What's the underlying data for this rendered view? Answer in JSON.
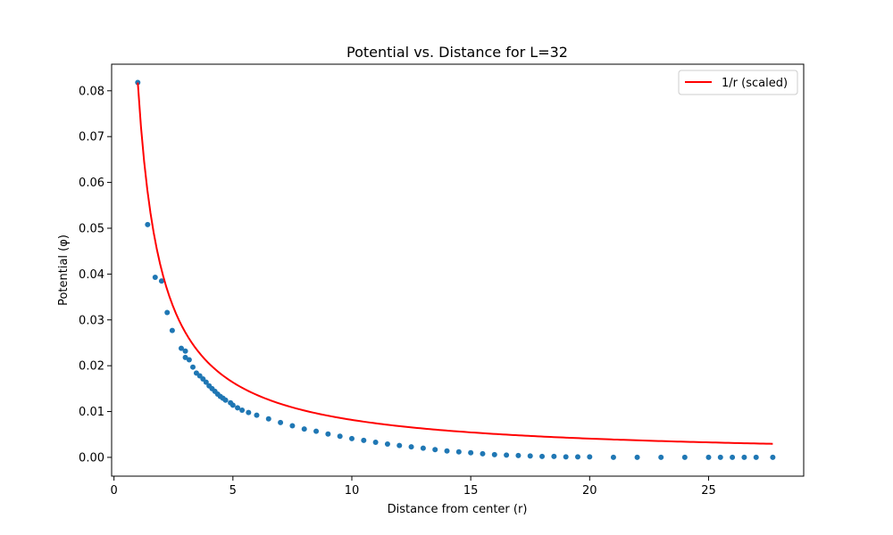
{
  "chart_data": {
    "type": "scatter",
    "title": "Potential vs. Distance for L=32",
    "xlabel": "Distance from center (r)",
    "ylabel": "Potential (φ)",
    "xlim": [
      -0.1,
      29.0
    ],
    "ylim": [
      -0.0041,
      0.0858
    ],
    "xticks": [
      0,
      5,
      10,
      15,
      20,
      25
    ],
    "yticks": [
      0.0,
      0.01,
      0.02,
      0.03,
      0.04,
      0.05,
      0.06,
      0.07,
      0.08
    ],
    "grid": false,
    "legend": {
      "placement": "top-right",
      "entries": [
        "1/r (scaled)"
      ]
    },
    "colors": {
      "scatter": "#1f77b4",
      "line": "#ff0000"
    },
    "series": [
      {
        "kind": "scatter",
        "points": [
          [
            1.0,
            0.0818
          ],
          [
            1.414,
            0.0508
          ],
          [
            1.732,
            0.0393
          ],
          [
            2.0,
            0.0385
          ],
          [
            2.236,
            0.0316
          ],
          [
            2.449,
            0.0277
          ],
          [
            2.828,
            0.0238
          ],
          [
            3.0,
            0.0232
          ],
          [
            3.0,
            0.0218
          ],
          [
            3.162,
            0.0213
          ],
          [
            3.317,
            0.0197
          ],
          [
            3.464,
            0.0184
          ],
          [
            3.606,
            0.0178
          ],
          [
            3.742,
            0.0171
          ],
          [
            3.873,
            0.0164
          ],
          [
            4.0,
            0.0156
          ],
          [
            4.123,
            0.015
          ],
          [
            4.243,
            0.0144
          ],
          [
            4.359,
            0.0138
          ],
          [
            4.472,
            0.0133
          ],
          [
            4.583,
            0.0129
          ],
          [
            4.69,
            0.0125
          ],
          [
            4.899,
            0.0119
          ],
          [
            5.0,
            0.0114
          ],
          [
            5.196,
            0.0108
          ],
          [
            5.385,
            0.0103
          ],
          [
            5.657,
            0.0098
          ],
          [
            6.0,
            0.0092
          ],
          [
            6.5,
            0.0084
          ],
          [
            7.0,
            0.0076
          ],
          [
            7.5,
            0.0069
          ],
          [
            8.0,
            0.0062
          ],
          [
            8.5,
            0.0057
          ],
          [
            9.0,
            0.0051
          ],
          [
            9.5,
            0.0046
          ],
          [
            10.0,
            0.0041
          ],
          [
            10.5,
            0.0037
          ],
          [
            11.0,
            0.0033
          ],
          [
            11.5,
            0.0029
          ],
          [
            12.0,
            0.0026
          ],
          [
            12.5,
            0.0023
          ],
          [
            13.0,
            0.002
          ],
          [
            13.5,
            0.0017
          ],
          [
            14.0,
            0.0014
          ],
          [
            14.5,
            0.0012
          ],
          [
            15.0,
            0.001
          ],
          [
            15.5,
            0.0008
          ],
          [
            16.0,
            0.0006
          ],
          [
            16.5,
            0.0005
          ],
          [
            17.0,
            0.0004
          ],
          [
            17.5,
            0.0003
          ],
          [
            18.0,
            0.0002
          ],
          [
            18.5,
            0.0002
          ],
          [
            19.0,
            0.0001
          ],
          [
            19.5,
            0.0001
          ],
          [
            20.0,
            0.0001
          ],
          [
            21.0,
            0.0
          ],
          [
            22.0,
            0.0
          ],
          [
            23.0,
            0.0
          ],
          [
            24.0,
            0.0
          ],
          [
            25.0,
            0.0
          ],
          [
            25.5,
            0.0
          ],
          [
            26.0,
            0.0
          ],
          [
            26.5,
            0.0
          ],
          [
            27.0,
            0.0
          ],
          [
            27.7,
            0.0
          ]
        ]
      },
      {
        "kind": "line",
        "name": "1/r (scaled)",
        "scale": 0.0818,
        "x_range": [
          1.0,
          27.7
        ]
      }
    ]
  }
}
